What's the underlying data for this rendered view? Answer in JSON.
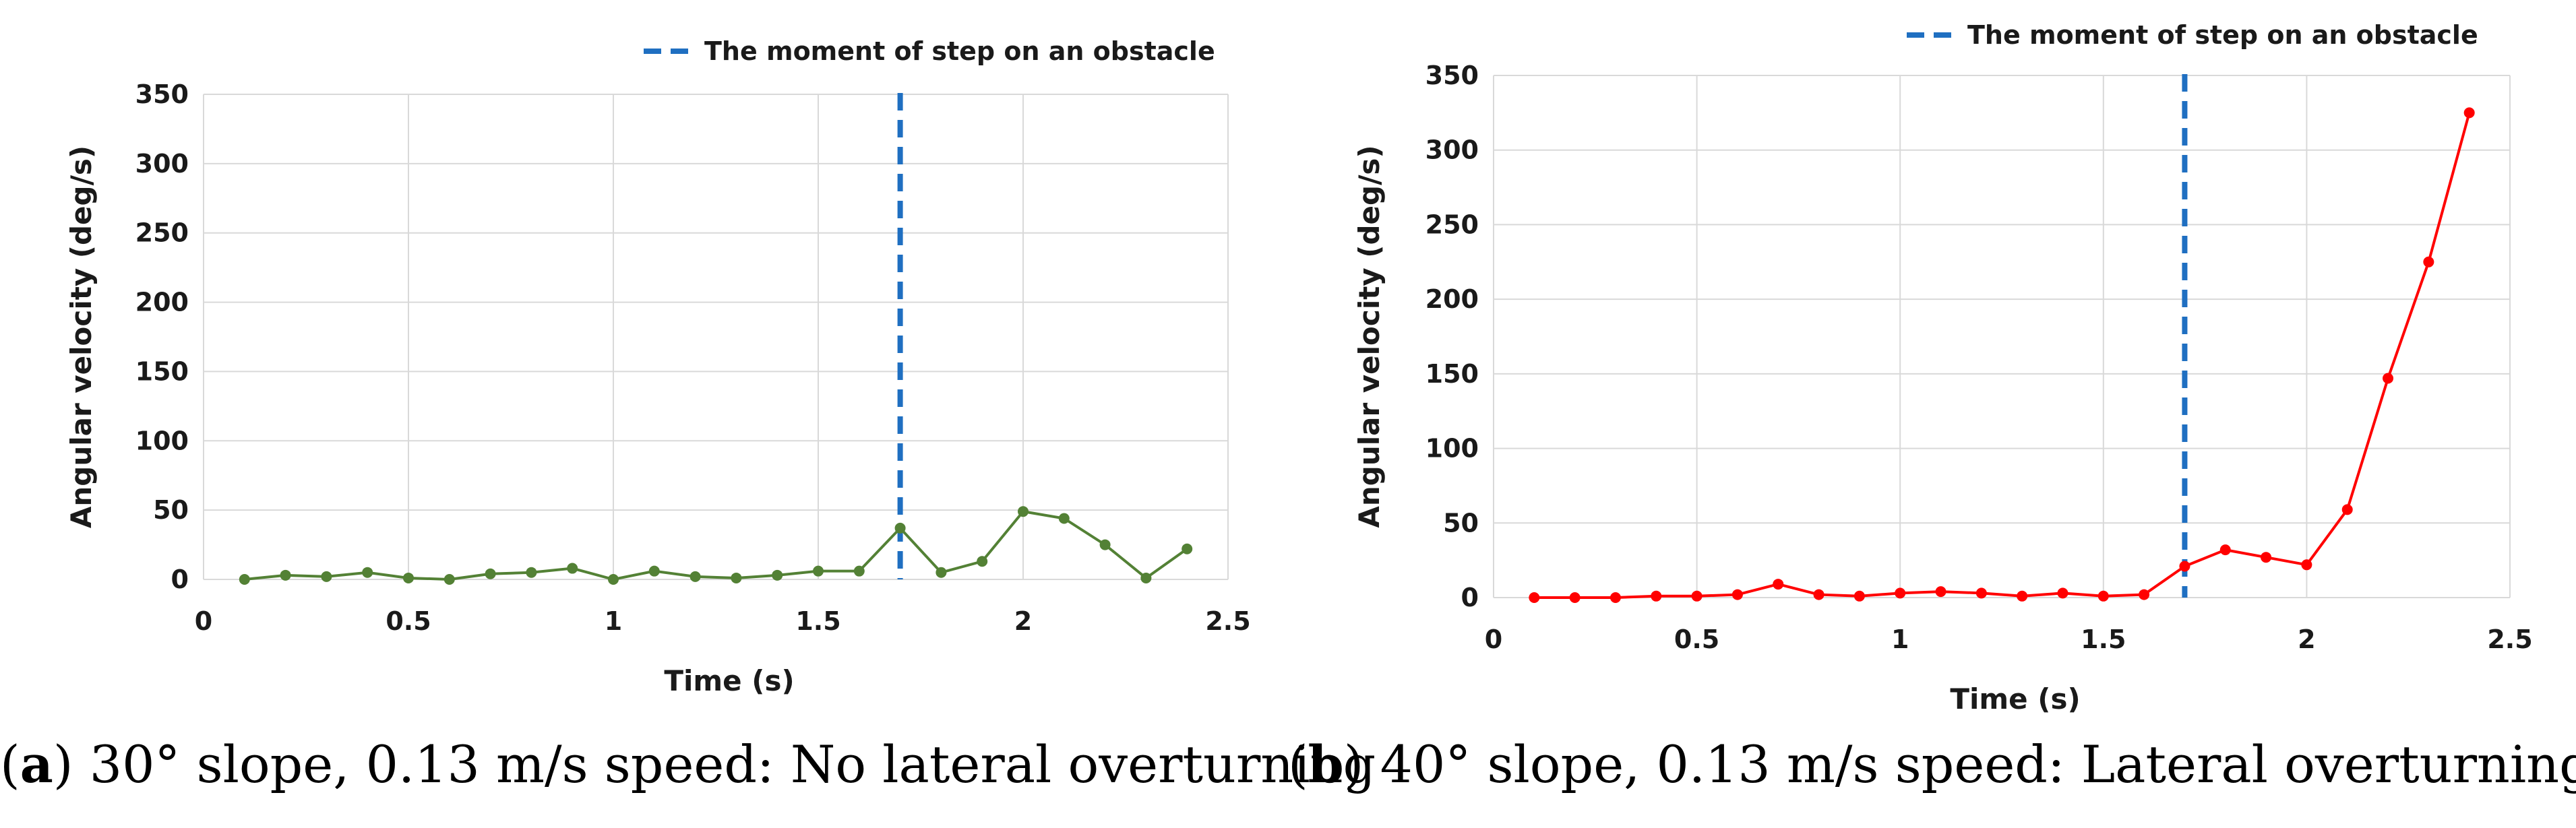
{
  "chart_data": [
    {
      "type": "line",
      "id": "a",
      "title": "",
      "xlabel": "Time (s)",
      "ylabel": "Angular velocity (deg/s)",
      "xlim": [
        0,
        2.5
      ],
      "ylim": [
        0,
        350
      ],
      "xticks": [
        "0",
        "0.5",
        "1",
        "1.5",
        "2",
        "2.5"
      ],
      "yticks": [
        "0",
        "50",
        "100",
        "150",
        "200",
        "250",
        "300",
        "350"
      ],
      "grid": true,
      "marker_color": "#538135",
      "obstacle_line": {
        "x": 1.7,
        "color": "#1f6fc1"
      },
      "legend": "The moment of step on an obstacle",
      "x": [
        0.1,
        0.2,
        0.3,
        0.4,
        0.5,
        0.6,
        0.7,
        0.8,
        0.9,
        1.0,
        1.1,
        1.2,
        1.3,
        1.4,
        1.5,
        1.6,
        1.7,
        1.8,
        1.9,
        2.0,
        2.1,
        2.2,
        2.3,
        2.4
      ],
      "y": [
        0,
        3,
        2,
        5,
        1,
        0,
        4,
        5,
        8,
        0,
        6,
        2,
        1,
        3,
        6,
        6,
        37,
        5,
        13,
        49,
        44,
        25,
        1,
        22
      ],
      "caption_label": "a",
      "caption_text": "30° slope, 0.13 m/s speed: No lateral overturning"
    },
    {
      "type": "line",
      "id": "b",
      "title": "",
      "xlabel": "Time (s)",
      "ylabel": "Angular velocity (deg/s)",
      "xlim": [
        0,
        2.5
      ],
      "ylim": [
        0,
        350
      ],
      "xticks": [
        "0",
        "0.5",
        "1",
        "1.5",
        "2",
        "2.5"
      ],
      "yticks": [
        "0",
        "50",
        "100",
        "150",
        "200",
        "250",
        "300",
        "350"
      ],
      "grid": true,
      "marker_color": "#ff0000",
      "obstacle_line": {
        "x": 1.7,
        "color": "#1f6fc1"
      },
      "legend": "The moment of step on an obstacle",
      "x": [
        0.1,
        0.2,
        0.3,
        0.4,
        0.5,
        0.6,
        0.7,
        0.8,
        0.9,
        1.0,
        1.1,
        1.2,
        1.3,
        1.4,
        1.5,
        1.6,
        1.7,
        1.8,
        1.9,
        2.0,
        2.1,
        2.2,
        2.3,
        2.4
      ],
      "y": [
        0,
        0,
        0,
        1,
        1,
        2,
        9,
        2,
        1,
        3,
        4,
        3,
        1,
        3,
        1,
        2,
        21,
        32,
        27,
        22,
        59,
        147,
        225,
        325
      ],
      "caption_label": "b",
      "caption_text": "40° slope, 0.13 m/s speed: Lateral overturning"
    }
  ]
}
